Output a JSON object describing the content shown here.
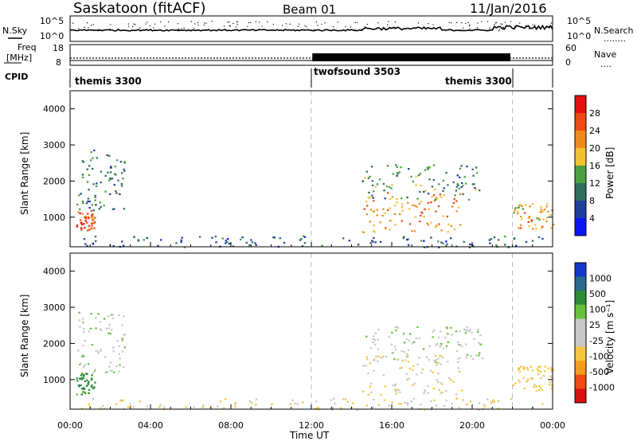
{
  "header": {
    "station": "Saskatoon (fitACF)",
    "beam": "Beam 01",
    "date": "11/Jan/2016"
  },
  "noise_panel": {
    "left_label": "N.Sky",
    "left_ticks": [
      "10^5",
      "10^0"
    ],
    "right_ticks": [
      "10^5",
      "10^0"
    ],
    "right_label": "N.Search",
    "right_legend_line": "........"
  },
  "freq_panel": {
    "left_label_line1": "Freq",
    "left_label_line2": "[MHz]",
    "left_ticks": [
      "18",
      "8"
    ],
    "right_ticks": [
      "60",
      "0"
    ],
    "right_label": "Nave",
    "right_legend_line": "...."
  },
  "cpid": {
    "label": "CPID",
    "segments": [
      {
        "name": "themis 3300",
        "start_hour": 0,
        "end_hour": 12.0
      },
      {
        "name": "twofsound 3503",
        "start_hour": 12.0,
        "end_hour": 22.0
      },
      {
        "name": "themis 3300",
        "start_hour": 22.0,
        "end_hour": 24.0
      }
    ]
  },
  "colors": {
    "power_scale": [
      "#0b16f5",
      "#1f3f9d",
      "#2f6e5e",
      "#4aa040",
      "#f2c232",
      "#f08a1c",
      "#ec4a12",
      "#e21010"
    ],
    "velocity_scale": [
      "#d91010",
      "#ef4a14",
      "#f59b1e",
      "#f5c542",
      "#c8c8c8",
      "#c8c8c8",
      "#66c23a",
      "#2f8a3a",
      "#2a6a8a",
      "#1638c8"
    ]
  },
  "chart_data": [
    {
      "type": "heatmap",
      "title": "Power",
      "ylabel": "Slant Range [km]",
      "xlim": [
        0,
        24
      ],
      "ylim": [
        180,
        4500
      ],
      "yticks": [
        1000,
        2000,
        3000,
        4000
      ],
      "colorbar_label": "Power [dB]",
      "colorbar_ticks": [
        "4",
        "8",
        "12",
        "16",
        "20",
        "24",
        "28"
      ],
      "vlines_hour": [
        12.0,
        22.0
      ],
      "features": [
        {
          "region": "dawn arc",
          "x_hour": [
            0.3,
            1.2
          ],
          "range_km": [
            600,
            1200
          ],
          "level_db": 26
        },
        {
          "region": "oblique band",
          "x_hour": [
            0.3,
            2.7
          ],
          "range_km": [
            1200,
            2900
          ],
          "level_db": 10
        },
        {
          "region": "near-range ground scatter",
          "x_hour": [
            0.5,
            23.5
          ],
          "range_km": [
            180,
            500
          ],
          "level_db": 8
        },
        {
          "region": "afternoon arc",
          "x_hour": [
            14.5,
            19.5
          ],
          "range_km": [
            600,
            1700
          ],
          "level_db": 22
        },
        {
          "region": "afternoon extended scatter",
          "x_hour": [
            14.5,
            20.5
          ],
          "range_km": [
            1500,
            2500
          ],
          "level_db": 12
        },
        {
          "region": "evening patch",
          "x_hour": [
            22.0,
            24.0
          ],
          "range_km": [
            700,
            1400
          ],
          "level_db": 20
        }
      ]
    },
    {
      "type": "heatmap",
      "title": "Velocity",
      "xlabel": "Time UT",
      "ylabel": "Slant Range [km]",
      "xlim": [
        0,
        24
      ],
      "ylim": [
        180,
        4500
      ],
      "yticks": [
        1000,
        2000,
        3000,
        4000
      ],
      "xticks": [
        "00:00",
        "04:00",
        "08:00",
        "12:00",
        "16:00",
        "20:00",
        "00:00"
      ],
      "colorbar_label": "Velocity [m s⁻¹]",
      "colorbar_ticks": [
        "-1000",
        "-500",
        "-100",
        "-25",
        "25",
        "100",
        "500",
        "1000"
      ],
      "vlines_hour": [
        12.0,
        22.0
      ],
      "features": [
        {
          "region": "dawn arc",
          "x_hour": [
            0.3,
            1.2
          ],
          "range_km": [
            600,
            1200
          ],
          "velocity": 150
        },
        {
          "region": "oblique band",
          "x_hour": [
            0.3,
            2.7
          ],
          "range_km": [
            1200,
            2900
          ],
          "velocity": 0
        },
        {
          "region": "near-range ground scatter",
          "x_hour": [
            0.5,
            23.5
          ],
          "range_km": [
            180,
            500
          ],
          "velocity": -100
        },
        {
          "region": "afternoon arc",
          "x_hour": [
            14.5,
            19.5
          ],
          "range_km": [
            600,
            1700
          ],
          "velocity": -100
        },
        {
          "region": "afternoon extended scatter",
          "x_hour": [
            14.5,
            20.5
          ],
          "range_km": [
            1500,
            2500
          ],
          "velocity": 0
        },
        {
          "region": "evening patch",
          "x_hour": [
            22.0,
            24.0
          ],
          "range_km": [
            700,
            1400
          ],
          "velocity": -200
        }
      ]
    }
  ]
}
